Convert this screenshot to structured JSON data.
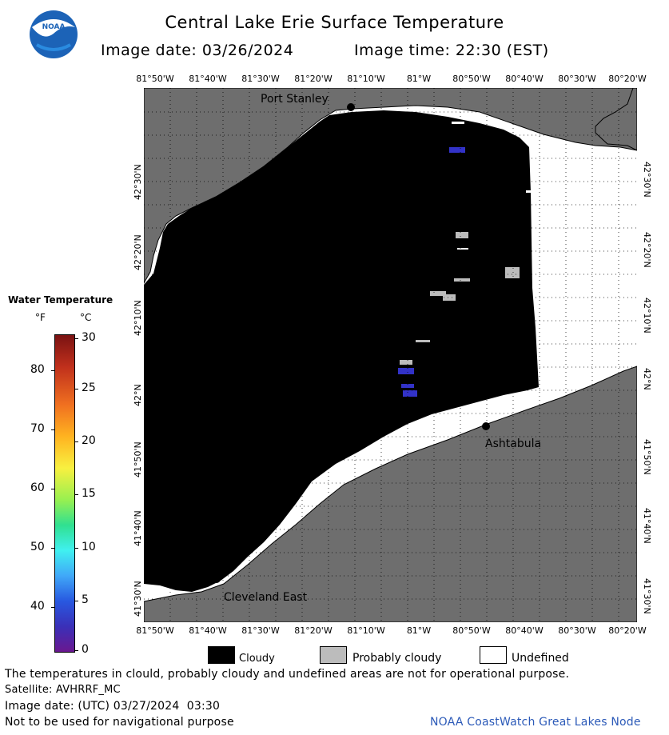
{
  "header": {
    "title": "Central Lake Erie Surface Temperature",
    "image_date": "Image date: 03/26/2024",
    "image_time": "Image time: 22:30 (EST)"
  },
  "icons": {
    "logo": "noaa-logo",
    "logo_text": "NOAA"
  },
  "map": {
    "lon_labels": [
      "81°50'W",
      "81°40'W",
      "81°30'W",
      "81°20'W",
      "81°10'W",
      "81°W",
      "80°50'W",
      "80°40'W",
      "80°30'W",
      "80°20'W"
    ],
    "lat_labels": [
      "42°30'N",
      "42°20'N",
      "42°10'N",
      "42°N",
      "41°50'N",
      "41°40'N",
      "41°30'N"
    ],
    "places": [
      "Port Stanley",
      "Ashtabula",
      "Cleveland East"
    ],
    "colors": {
      "land": "#6e6e6e",
      "cloudy": "#000000",
      "probably_cloudy": "#bcbcbc",
      "undefined": "#ffffff"
    }
  },
  "legend": {
    "title": "Water Temperature",
    "unit_f": "°F",
    "unit_c": "°C",
    "f_ticks": [
      "80",
      "70",
      "60",
      "50",
      "40"
    ],
    "c_ticks": [
      "30",
      "25",
      "20",
      "15",
      "10",
      "5",
      "0"
    ],
    "categories": [
      "Cloudy",
      "Probably cloudy",
      "Undefined"
    ]
  },
  "footer": {
    "note": "The temperatures in clould, probably cloudy and undefined areas are not for operational purpose.",
    "satellite": "Satellite: AVHRRF_MC",
    "utc_date": "Image date: (UTC) 03/27/2024  03:30",
    "warning": "Not to be used for navigational purpose",
    "credit": "NOAA CoastWatch Great Lakes Node"
  }
}
